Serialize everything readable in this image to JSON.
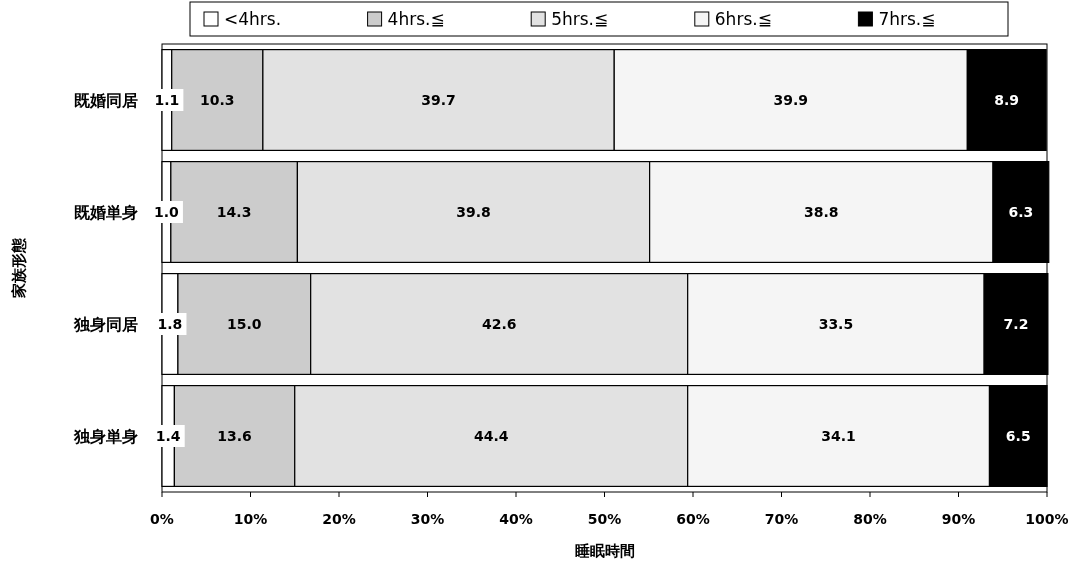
{
  "chart_data": {
    "type": "bar",
    "orientation": "horizontal",
    "stacked": true,
    "xlabel": "睡眠時間",
    "ylabel": "家族形態",
    "categories": [
      "既婚同居",
      "既婚単身",
      "独身同居",
      "独身単身"
    ],
    "series": [
      {
        "name": "<4hrs.",
        "color": "#ffffff",
        "values": [
          1.1,
          1.0,
          1.8,
          1.4
        ],
        "value_labels": [
          "1.1",
          "1.0",
          "1.8",
          "1.4"
        ]
      },
      {
        "name": "4hrs.≦",
        "color": "#cccccc",
        "values": [
          10.3,
          14.3,
          15.0,
          13.6
        ],
        "value_labels": [
          "10.3",
          "14.3",
          "15.0",
          "13.6"
        ]
      },
      {
        "name": "5hrs.≦",
        "color": "#e2e2e2",
        "values": [
          39.7,
          39.8,
          42.6,
          44.4
        ],
        "value_labels": [
          "39.7",
          "39.8",
          "42.6",
          "44.4"
        ]
      },
      {
        "name": "6hrs.≦",
        "color": "#f5f5f5",
        "values": [
          39.9,
          38.8,
          33.5,
          34.1
        ],
        "value_labels": [
          "39.9",
          "38.8",
          "33.5",
          "34.1"
        ]
      },
      {
        "name": "7hrs.≦",
        "color": "#000000",
        "values": [
          8.9,
          6.3,
          7.2,
          6.5
        ],
        "value_labels": [
          "8.9",
          "6.3",
          "7.2",
          "6.5"
        ]
      }
    ],
    "xlim": [
      0,
      100
    ],
    "xticks": [
      {
        "value": 0,
        "label": "0%"
      },
      {
        "value": 10,
        "label": "10%"
      },
      {
        "value": 20,
        "label": "20%"
      },
      {
        "value": 30,
        "label": "30%"
      },
      {
        "value": 40,
        "label": "40%"
      },
      {
        "value": 50,
        "label": "50%"
      },
      {
        "value": 60,
        "label": "60%"
      },
      {
        "value": 70,
        "label": "70%"
      },
      {
        "value": 80,
        "label": "80%"
      },
      {
        "value": 90,
        "label": "90%"
      },
      {
        "value": 100,
        "label": "100%"
      }
    ],
    "legend": "top",
    "grid": false
  }
}
